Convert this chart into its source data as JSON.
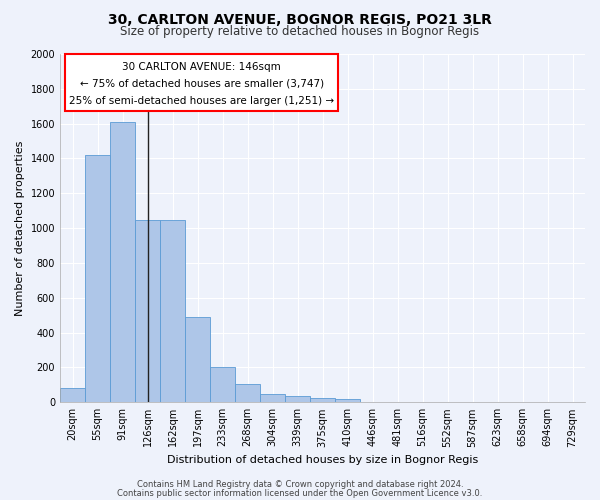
{
  "title1": "30, CARLTON AVENUE, BOGNOR REGIS, PO21 3LR",
  "title2": "Size of property relative to detached houses in Bognor Regis",
  "xlabel": "Distribution of detached houses by size in Bognor Regis",
  "ylabel": "Number of detached properties",
  "categories": [
    "20sqm",
    "55sqm",
    "91sqm",
    "126sqm",
    "162sqm",
    "197sqm",
    "233sqm",
    "268sqm",
    "304sqm",
    "339sqm",
    "375sqm",
    "410sqm",
    "446sqm",
    "481sqm",
    "516sqm",
    "552sqm",
    "587sqm",
    "623sqm",
    "658sqm",
    "694sqm",
    "729sqm"
  ],
  "values": [
    80,
    1420,
    1610,
    1045,
    1045,
    490,
    205,
    105,
    47,
    35,
    22,
    17,
    0,
    0,
    0,
    0,
    0,
    0,
    0,
    0,
    0
  ],
  "bar_color": "#aec6e8",
  "bar_edge_color": "#5b9bd5",
  "property_line_x": 3.0,
  "property_line_color": "#222222",
  "ylim": [
    0,
    2000
  ],
  "yticks": [
    0,
    200,
    400,
    600,
    800,
    1000,
    1200,
    1400,
    1600,
    1800,
    2000
  ],
  "annotation_title": "30 CARLTON AVENUE: 146sqm",
  "annotation_line1": "← 75% of detached houses are smaller (3,747)",
  "annotation_line2": "25% of semi-detached houses are larger (1,251) →",
  "footer1": "Contains HM Land Registry data © Crown copyright and database right 2024.",
  "footer2": "Contains public sector information licensed under the Open Government Licence v3.0.",
  "bg_color": "#eef2fb",
  "grid_color": "#ffffff",
  "title1_fontsize": 10,
  "title2_fontsize": 8.5,
  "ylabel_fontsize": 8,
  "xlabel_fontsize": 8,
  "tick_fontsize": 7,
  "ann_fontsize": 7.5
}
